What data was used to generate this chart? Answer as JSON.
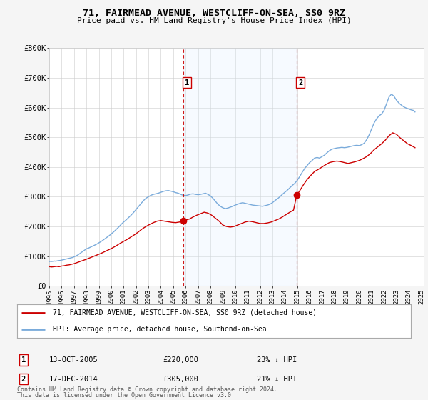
{
  "title": "71, FAIRMEAD AVENUE, WESTCLIFF-ON-SEA, SS0 9RZ",
  "subtitle": "Price paid vs. HM Land Registry's House Price Index (HPI)",
  "ylim": [
    0,
    800000
  ],
  "yticks": [
    0,
    100000,
    200000,
    300000,
    400000,
    500000,
    600000,
    700000,
    800000
  ],
  "ytick_labels": [
    "£0",
    "£100K",
    "£200K",
    "£300K",
    "£400K",
    "£500K",
    "£600K",
    "£700K",
    "£800K"
  ],
  "xlim_start": 1995.0,
  "xlim_end": 2025.2,
  "transactions": [
    {
      "label": "1",
      "date": 2005.79,
      "price": 220000,
      "display_date": "13-OCT-2005",
      "display_price": "£220,000",
      "display_pct": "23% ↓ HPI"
    },
    {
      "label": "2",
      "date": 2014.96,
      "price": 305000,
      "display_date": "17-DEC-2014",
      "display_price": "£305,000",
      "display_pct": "21% ↓ HPI"
    }
  ],
  "legend_line1": "71, FAIRMEAD AVENUE, WESTCLIFF-ON-SEA, SS0 9RZ (detached house)",
  "legend_line2": "HPI: Average price, detached house, Southend-on-Sea",
  "footer1": "Contains HM Land Registry data © Crown copyright and database right 2024.",
  "footer2": "This data is licensed under the Open Government Licence v3.0.",
  "red_color": "#cc0000",
  "blue_color": "#7aabdb",
  "shade_color": "#ddeeff",
  "grid_color": "#cccccc",
  "plot_bg_color": "#ffffff",
  "fig_bg_color": "#f5f5f5",
  "hpi_data_x": [
    1995.0,
    1995.1,
    1995.2,
    1995.3,
    1995.4,
    1995.5,
    1995.6,
    1995.7,
    1995.8,
    1995.9,
    1996.0,
    1996.1,
    1996.2,
    1996.3,
    1996.4,
    1996.5,
    1996.6,
    1996.7,
    1996.8,
    1996.9,
    1997.0,
    1997.1,
    1997.2,
    1997.3,
    1997.4,
    1997.5,
    1997.6,
    1997.7,
    1997.8,
    1997.9,
    1998.0,
    1998.2,
    1998.4,
    1998.6,
    1998.8,
    1999.0,
    1999.2,
    1999.4,
    1999.6,
    1999.8,
    2000.0,
    2000.2,
    2000.4,
    2000.6,
    2000.8,
    2001.0,
    2001.2,
    2001.4,
    2001.6,
    2001.8,
    2002.0,
    2002.2,
    2002.4,
    2002.6,
    2002.8,
    2003.0,
    2003.2,
    2003.4,
    2003.6,
    2003.8,
    2004.0,
    2004.2,
    2004.4,
    2004.6,
    2004.8,
    2005.0,
    2005.2,
    2005.4,
    2005.6,
    2005.8,
    2006.0,
    2006.2,
    2006.4,
    2006.6,
    2006.8,
    2007.0,
    2007.2,
    2007.4,
    2007.6,
    2007.8,
    2008.0,
    2008.2,
    2008.4,
    2008.6,
    2008.8,
    2009.0,
    2009.2,
    2009.4,
    2009.6,
    2009.8,
    2010.0,
    2010.2,
    2010.4,
    2010.6,
    2010.8,
    2011.0,
    2011.2,
    2011.4,
    2011.6,
    2011.8,
    2012.0,
    2012.2,
    2012.4,
    2012.6,
    2012.8,
    2013.0,
    2013.2,
    2013.4,
    2013.6,
    2013.8,
    2014.0,
    2014.2,
    2014.4,
    2014.6,
    2014.8,
    2015.0,
    2015.2,
    2015.4,
    2015.6,
    2015.8,
    2016.0,
    2016.2,
    2016.4,
    2016.6,
    2016.8,
    2017.0,
    2017.2,
    2017.4,
    2017.6,
    2017.8,
    2018.0,
    2018.2,
    2018.4,
    2018.6,
    2018.8,
    2019.0,
    2019.2,
    2019.4,
    2019.6,
    2019.8,
    2020.0,
    2020.2,
    2020.4,
    2020.6,
    2020.8,
    2021.0,
    2021.2,
    2021.4,
    2021.6,
    2021.8,
    2022.0,
    2022.2,
    2022.4,
    2022.6,
    2022.8,
    2023.0,
    2023.2,
    2023.4,
    2023.6,
    2023.8,
    2024.0,
    2024.2,
    2024.4,
    2024.5
  ],
  "hpi_data_y": [
    82000,
    83000,
    82500,
    83000,
    84000,
    83500,
    84000,
    85000,
    85500,
    86000,
    87000,
    88000,
    89000,
    90000,
    91000,
    92000,
    93000,
    94000,
    95000,
    96000,
    98000,
    100000,
    102000,
    104000,
    107000,
    110000,
    113000,
    116000,
    119000,
    122000,
    125000,
    128000,
    132000,
    136000,
    140000,
    145000,
    150000,
    156000,
    162000,
    168000,
    175000,
    182000,
    190000,
    198000,
    207000,
    215000,
    222000,
    230000,
    238000,
    247000,
    257000,
    267000,
    277000,
    287000,
    295000,
    300000,
    305000,
    308000,
    310000,
    312000,
    315000,
    318000,
    320000,
    321000,
    319000,
    317000,
    314000,
    312000,
    308000,
    305000,
    304000,
    306000,
    309000,
    310000,
    308000,
    307000,
    308000,
    310000,
    312000,
    308000,
    303000,
    295000,
    285000,
    275000,
    268000,
    263000,
    260000,
    262000,
    265000,
    268000,
    272000,
    275000,
    278000,
    280000,
    278000,
    276000,
    274000,
    272000,
    271000,
    270000,
    269000,
    268000,
    270000,
    272000,
    275000,
    280000,
    287000,
    293000,
    300000,
    308000,
    315000,
    322000,
    330000,
    338000,
    345000,
    355000,
    368000,
    382000,
    395000,
    405000,
    415000,
    422000,
    430000,
    432000,
    430000,
    435000,
    440000,
    448000,
    455000,
    460000,
    462000,
    464000,
    465000,
    466000,
    465000,
    466000,
    468000,
    470000,
    472000,
    473000,
    472000,
    475000,
    480000,
    492000,
    508000,
    528000,
    548000,
    562000,
    572000,
    578000,
    590000,
    612000,
    635000,
    645000,
    638000,
    625000,
    615000,
    608000,
    602000,
    598000,
    595000,
    592000,
    590000,
    585000
  ],
  "red_data_x": [
    1995.0,
    1995.2,
    1995.4,
    1995.6,
    1995.8,
    1996.0,
    1996.2,
    1996.4,
    1996.6,
    1996.8,
    1997.0,
    1997.2,
    1997.4,
    1997.6,
    1997.8,
    1998.0,
    1998.3,
    1998.6,
    1998.9,
    1999.2,
    1999.5,
    1999.8,
    2000.1,
    2000.4,
    2000.7,
    2001.0,
    2001.3,
    2001.6,
    2001.9,
    2002.2,
    2002.5,
    2002.8,
    2003.1,
    2003.4,
    2003.7,
    2004.0,
    2004.3,
    2004.6,
    2004.9,
    2005.2,
    2005.5,
    2005.79,
    2006.0,
    2006.3,
    2006.6,
    2006.9,
    2007.2,
    2007.5,
    2007.8,
    2008.1,
    2008.4,
    2008.7,
    2009.0,
    2009.3,
    2009.6,
    2009.9,
    2010.2,
    2010.5,
    2010.8,
    2011.1,
    2011.4,
    2011.7,
    2012.0,
    2012.3,
    2012.6,
    2012.9,
    2013.2,
    2013.5,
    2013.8,
    2014.1,
    2014.4,
    2014.7,
    2014.96,
    2015.2,
    2015.5,
    2015.8,
    2016.1,
    2016.4,
    2016.7,
    2017.0,
    2017.3,
    2017.6,
    2017.9,
    2018.2,
    2018.5,
    2018.8,
    2019.1,
    2019.4,
    2019.7,
    2020.0,
    2020.3,
    2020.6,
    2020.9,
    2021.2,
    2021.5,
    2021.8,
    2022.1,
    2022.4,
    2022.7,
    2023.0,
    2023.3,
    2023.6,
    2023.9,
    2024.2,
    2024.5
  ],
  "red_data_y": [
    65000,
    64000,
    65000,
    66000,
    65000,
    67000,
    68000,
    70000,
    71000,
    73000,
    75000,
    78000,
    81000,
    84000,
    87000,
    90000,
    95000,
    100000,
    105000,
    110000,
    116000,
    122000,
    128000,
    135000,
    143000,
    150000,
    157000,
    165000,
    173000,
    182000,
    192000,
    200000,
    207000,
    213000,
    218000,
    220000,
    218000,
    216000,
    214000,
    213000,
    215000,
    220000,
    222000,
    225000,
    232000,
    238000,
    243000,
    248000,
    245000,
    238000,
    228000,
    218000,
    205000,
    200000,
    198000,
    200000,
    205000,
    210000,
    215000,
    218000,
    216000,
    213000,
    210000,
    210000,
    212000,
    215000,
    220000,
    225000,
    232000,
    240000,
    248000,
    255000,
    305000,
    320000,
    340000,
    358000,
    372000,
    385000,
    392000,
    400000,
    408000,
    415000,
    418000,
    420000,
    418000,
    415000,
    412000,
    415000,
    418000,
    422000,
    428000,
    435000,
    445000,
    458000,
    468000,
    478000,
    490000,
    505000,
    515000,
    510000,
    498000,
    488000,
    478000,
    472000,
    465000
  ]
}
